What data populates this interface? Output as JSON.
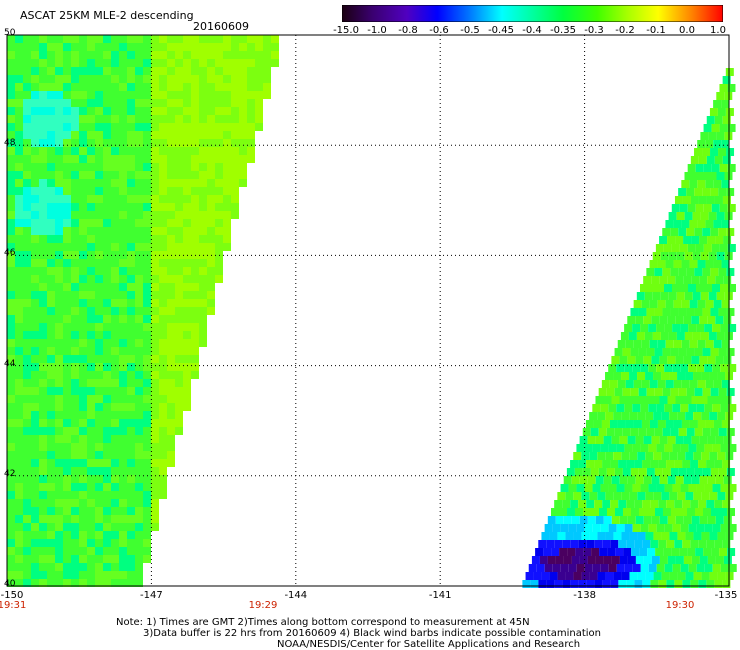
{
  "header": {
    "title": "ASCAT 25KM MLE-2 descending",
    "date": "20160609"
  },
  "colorbar": {
    "ticks": [
      "-15.0",
      "-1.0",
      "-0.8",
      "-0.6",
      "-0.5",
      "-0.45",
      "-0.4",
      "-0.35",
      "-0.3",
      "-0.2",
      "-0.1",
      "0.0",
      "1.0"
    ],
    "colors": [
      "#1a0010",
      "#2a0060",
      "#4800b0",
      "#0000ff",
      "#0080ff",
      "#00ffff",
      "#00ffa0",
      "#00ff40",
      "#40ff00",
      "#a0ff00",
      "#ffff00",
      "#ff8000",
      "#ff0000"
    ]
  },
  "map": {
    "lon_range": [
      -150,
      -135
    ],
    "lat_range": [
      40,
      50
    ],
    "y_ticks": [
      "50",
      "48",
      "46",
      "44",
      "42",
      "40"
    ],
    "x_ticks": [
      "-150",
      "-147",
      "-144",
      "-141",
      "-138",
      "-135"
    ],
    "times": [
      "19:31",
      "19:29",
      "19:30"
    ],
    "grid_lons": [
      -147,
      -144,
      -141,
      -138
    ],
    "grid_lats": [
      48,
      46,
      44,
      42
    ]
  },
  "footer": {
    "line1": "Note: 1) Times are GMT 2)Times along bottom correspond to measurement at 45N",
    "line2": "3)Data buffer is 22 hrs from 20160609 4) Black wind barbs indicate possible contamination",
    "line3": "NOAA/NESDIS/Center for Satellite Applications and Research"
  }
}
